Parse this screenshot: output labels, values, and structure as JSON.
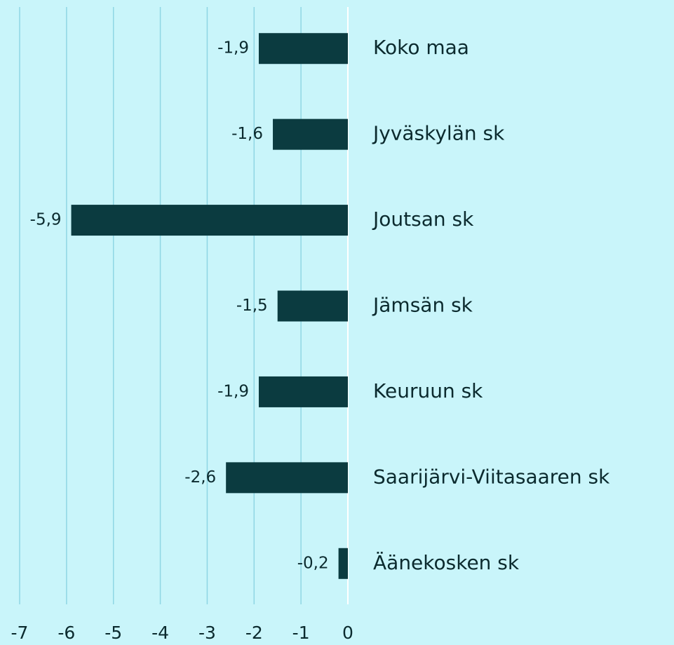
{
  "chart_data": {
    "type": "hbar",
    "categories": [
      "Koko maa",
      "Jyväskylän sk",
      "Joutsan sk",
      "Jämsän sk",
      "Keuruun sk",
      "Saarijärvi-Viitasaaren sk",
      "Äänekosken sk"
    ],
    "values": [
      -1.9,
      -1.6,
      -5.9,
      -1.5,
      -1.9,
      -2.6,
      -0.2
    ],
    "value_labels": [
      "-1,9",
      "-1,6",
      "-5,9",
      "-1,5",
      "-1,9",
      "-2,6",
      "-0,2"
    ],
    "color": "#0b3b40",
    "xlim": [
      -7,
      0
    ],
    "xticks": [
      -7,
      -6,
      -5,
      -4,
      -3,
      -2,
      -1,
      0
    ],
    "grid": true
  }
}
